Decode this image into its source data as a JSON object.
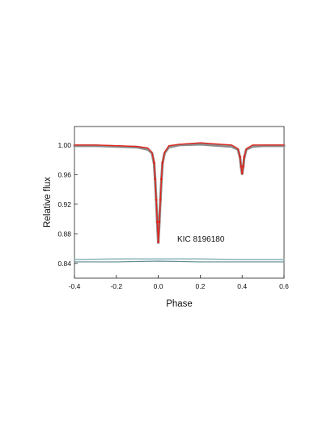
{
  "chart_data": {
    "type": "line",
    "xlabel": "Phase",
    "ylabel": "Relative flux",
    "xlim": [
      -0.4,
      0.6
    ],
    "ylim": [
      0.82,
      1.025
    ],
    "xticks": [
      "-0.4",
      "-0.2",
      "0.0",
      "0.2",
      "0.4",
      "0.6"
    ],
    "yticks": [
      "0.84",
      "0.88",
      "0.92",
      "0.96",
      "1.00"
    ],
    "annotation": "KIC 8196180",
    "grid": false,
    "colors": {
      "observed": "#8c8c8c",
      "model": "#e0241b",
      "residual_upper": "#8fb8bc",
      "residual_lower": "#5f8a8f"
    },
    "series": [
      {
        "role": "observed",
        "x": [
          -0.4,
          -0.3,
          -0.2,
          -0.1,
          -0.05,
          -0.03,
          -0.02,
          -0.015,
          -0.01,
          -0.005,
          0.0,
          0.005,
          0.01,
          0.015,
          0.02,
          0.03,
          0.05,
          0.1,
          0.2,
          0.3,
          0.35,
          0.38,
          0.39,
          0.395,
          0.4,
          0.405,
          0.41,
          0.42,
          0.45,
          0.5,
          0.6
        ],
        "y": [
          0.999,
          0.999,
          0.998,
          0.997,
          0.994,
          0.989,
          0.975,
          0.953,
          0.925,
          0.895,
          0.868,
          0.895,
          0.925,
          0.953,
          0.975,
          0.989,
          0.997,
          1.0,
          1.001,
          0.999,
          0.998,
          0.994,
          0.983,
          0.97,
          0.961,
          0.97,
          0.983,
          0.994,
          0.998,
          0.999,
          0.999
        ]
      },
      {
        "role": "model",
        "x": [
          -0.4,
          -0.3,
          -0.2,
          -0.1,
          -0.05,
          -0.03,
          -0.02,
          -0.015,
          -0.01,
          -0.005,
          0.0,
          0.005,
          0.01,
          0.015,
          0.02,
          0.03,
          0.05,
          0.1,
          0.2,
          0.3,
          0.35,
          0.38,
          0.39,
          0.395,
          0.4,
          0.405,
          0.41,
          0.42,
          0.45,
          0.5,
          0.6
        ],
        "y": [
          1.0,
          1.0,
          0.999,
          0.998,
          0.996,
          0.99,
          0.976,
          0.954,
          0.926,
          0.896,
          0.869,
          0.896,
          0.926,
          0.954,
          0.976,
          0.99,
          0.999,
          1.001,
          1.003,
          1.001,
          1.0,
          0.995,
          0.984,
          0.971,
          0.962,
          0.971,
          0.984,
          0.995,
          1.0,
          1.0,
          1.0
        ]
      },
      {
        "role": "residual_upper",
        "x": [
          -0.4,
          -0.2,
          0.0,
          0.2,
          0.4,
          0.6
        ],
        "y": [
          0.845,
          0.846,
          0.846,
          0.846,
          0.845,
          0.845
        ]
      },
      {
        "role": "residual_lower",
        "x": [
          -0.4,
          -0.2,
          0.0,
          0.2,
          0.4,
          0.6
        ],
        "y": [
          0.842,
          0.842,
          0.843,
          0.842,
          0.842,
          0.842
        ]
      }
    ]
  }
}
